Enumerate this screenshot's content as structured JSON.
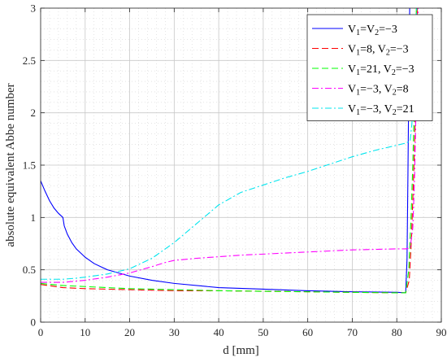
{
  "chart_data": {
    "type": "line",
    "title": "",
    "xlabel": "d [mm]",
    "ylabel": "absolute equivalent Abbe number",
    "xlim": [
      0,
      90
    ],
    "ylim": [
      0,
      3
    ],
    "xticks": [
      "0",
      "10",
      "20",
      "30",
      "40",
      "50",
      "60",
      "70",
      "80",
      "90"
    ],
    "yticks": [
      "0",
      "0.5",
      "1",
      "1.5",
      "2",
      "2.5",
      "3"
    ],
    "grid": "major-and-minor",
    "legend_position": "top-right",
    "series": [
      {
        "legend": [
          [
            "V",
            "1",
            "=V",
            "2",
            "=−3"
          ]
        ],
        "color": "#0000ff",
        "dash": "solid",
        "points": [
          [
            0,
            1.35
          ],
          [
            1,
            1.25
          ],
          [
            2,
            1.16
          ],
          [
            3,
            1.09
          ],
          [
            4,
            1.04
          ],
          [
            5,
            1.0
          ],
          [
            5.3,
            0.92
          ],
          [
            6,
            0.84
          ],
          [
            7,
            0.76
          ],
          [
            8,
            0.7
          ],
          [
            10,
            0.62
          ],
          [
            12,
            0.56
          ],
          [
            15,
            0.5
          ],
          [
            20,
            0.44
          ],
          [
            25,
            0.4
          ],
          [
            30,
            0.37
          ],
          [
            40,
            0.33
          ],
          [
            50,
            0.315
          ],
          [
            60,
            0.3
          ],
          [
            70,
            0.29
          ],
          [
            80,
            0.285
          ],
          [
            82,
            0.28
          ],
          [
            82.3,
            0.6
          ],
          [
            82.5,
            1.4
          ],
          [
            82.7,
            2.3
          ],
          [
            82.9,
            3.0
          ]
        ]
      },
      {
        "legend": [
          [
            "V",
            "1",
            "=8, V",
            "2",
            "=−3"
          ]
        ],
        "color": "#ff0000",
        "dash": "dashed",
        "points": [
          [
            0,
            0.36
          ],
          [
            5,
            0.33
          ],
          [
            10,
            0.32
          ],
          [
            20,
            0.31
          ],
          [
            30,
            0.3
          ],
          [
            40,
            0.3
          ],
          [
            50,
            0.295
          ],
          [
            60,
            0.29
          ],
          [
            70,
            0.285
          ],
          [
            80,
            0.28
          ],
          [
            82,
            0.28
          ],
          [
            82.8,
            0.4
          ],
          [
            83.3,
            0.8
          ],
          [
            83.7,
            1.3
          ],
          [
            84,
            1.7
          ],
          [
            84.3,
            2.3
          ],
          [
            84.6,
            3.0
          ]
        ]
      },
      {
        "legend": [
          [
            "V",
            "1",
            "=21, V",
            "2",
            "=−3"
          ]
        ],
        "color": "#00ff00",
        "dash": "dashed",
        "points": [
          [
            0,
            0.37
          ],
          [
            5,
            0.35
          ],
          [
            10,
            0.34
          ],
          [
            20,
            0.32
          ],
          [
            30,
            0.31
          ],
          [
            40,
            0.3
          ],
          [
            50,
            0.295
          ],
          [
            60,
            0.29
          ],
          [
            70,
            0.285
          ],
          [
            80,
            0.28
          ],
          [
            82,
            0.28
          ],
          [
            82.7,
            0.5
          ],
          [
            83.2,
            1.0
          ],
          [
            83.6,
            1.5
          ],
          [
            84,
            2.2
          ],
          [
            84.4,
            3.0
          ]
        ]
      },
      {
        "legend": [
          [
            "V",
            "1",
            "=−3, V",
            "2",
            "=8"
          ]
        ],
        "color": "#ff00ff",
        "dash": "dashdot",
        "points": [
          [
            0,
            0.38
          ],
          [
            5,
            0.38
          ],
          [
            10,
            0.4
          ],
          [
            15,
            0.43
          ],
          [
            20,
            0.47
          ],
          [
            25,
            0.53
          ],
          [
            28,
            0.57
          ],
          [
            30,
            0.59
          ],
          [
            35,
            0.61
          ],
          [
            40,
            0.625
          ],
          [
            45,
            0.64
          ],
          [
            50,
            0.65
          ],
          [
            55,
            0.66
          ],
          [
            60,
            0.67
          ],
          [
            65,
            0.68
          ],
          [
            70,
            0.69
          ],
          [
            75,
            0.695
          ],
          [
            80,
            0.7
          ],
          [
            82,
            0.7
          ],
          [
            83,
            0.71
          ],
          [
            83.6,
            0.9
          ],
          [
            84,
            1.4
          ],
          [
            84.4,
            2.2
          ],
          [
            84.8,
            3.0
          ]
        ]
      },
      {
        "legend": [
          [
            "V",
            "1",
            "=−3, V",
            "2",
            "=21"
          ]
        ],
        "color": "#00e5ee",
        "dash": "dashdot",
        "points": [
          [
            0,
            0.41
          ],
          [
            5,
            0.41
          ],
          [
            8,
            0.42
          ],
          [
            10,
            0.43
          ],
          [
            15,
            0.46
          ],
          [
            20,
            0.51
          ],
          [
            25,
            0.61
          ],
          [
            30,
            0.76
          ],
          [
            35,
            0.94
          ],
          [
            40,
            1.12
          ],
          [
            45,
            1.24
          ],
          [
            50,
            1.31
          ],
          [
            55,
            1.38
          ],
          [
            60,
            1.44
          ],
          [
            65,
            1.51
          ],
          [
            70,
            1.58
          ],
          [
            75,
            1.64
          ],
          [
            80,
            1.69
          ],
          [
            82,
            1.71
          ],
          [
            83,
            1.73
          ],
          [
            83.4,
            1.9
          ],
          [
            83.8,
            2.3
          ],
          [
            84.2,
            2.8
          ],
          [
            84.5,
            3.0
          ]
        ]
      }
    ]
  }
}
